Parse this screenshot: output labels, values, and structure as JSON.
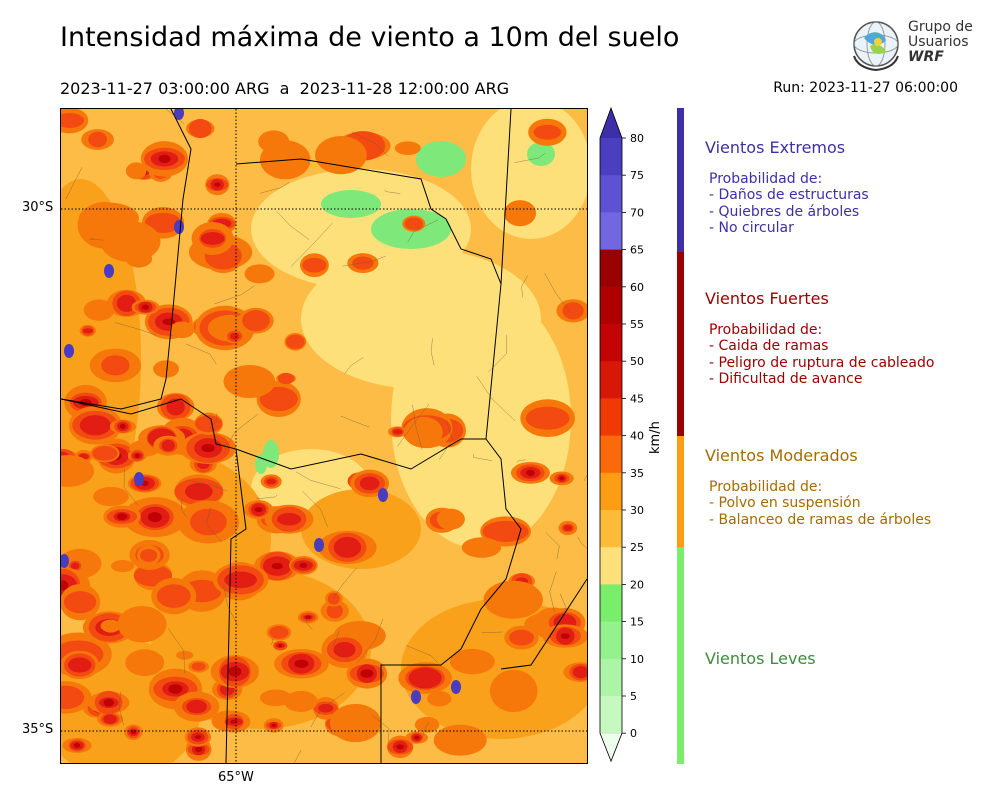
{
  "title": "Intensidad máxima de viento a 10m del suelo",
  "period": "2023-11-27 03:00:00 ARG  a  2023-11-28 12:00:00 ARG",
  "run": "Run: 2023-11-27 06:00:00",
  "logo": {
    "line1": "Grupo de",
    "line2": "Usuarios",
    "line3": "WRF"
  },
  "map": {
    "lat_labels": [
      "30°S",
      "35°S"
    ],
    "lon_labels": [
      "65°W"
    ],
    "palette": {
      "land_25_30": "#fde07a",
      "land_30_35": "#fcbc45",
      "land_35_40": "#f9a11a",
      "land_40_45": "#f7780a",
      "land_45_50": "#f24a10",
      "land_50_55": "#e21d14",
      "land_55_60": "#c10202",
      "extreme": "#4a3bbf",
      "low_20_25": "#7ee87a"
    }
  },
  "colorbar": {
    "unit": "km/h",
    "ticks": [
      "80",
      "75",
      "70",
      "65",
      "60",
      "55",
      "50",
      "45",
      "40",
      "35",
      "30",
      "25",
      "20",
      "15",
      "10",
      "5",
      "0"
    ],
    "colors": [
      "#3d2fa8",
      "#4b3fc0",
      "#5e52d2",
      "#7267e0",
      "#9b0000",
      "#ae0000",
      "#c20404",
      "#d81806",
      "#ef3a06",
      "#fb6a0a",
      "#fd9d14",
      "#fdbb38",
      "#fee07a",
      "#7aee6a",
      "#93f28c",
      "#adf5a6",
      "#c6f9c0",
      "#dcfbd7",
      "#eefeec"
    ]
  },
  "categories": [
    {
      "name": "Vientos Extremos",
      "color": "#3d2fa8",
      "desc": [
        " Probabilidad de:",
        " - Daños de estructuras",
        " - Quiebres de árboles",
        " - No circular"
      ]
    },
    {
      "name": "Vientos Fuertes",
      "color": "#990000",
      "desc": [
        " Probabilidad de:",
        " - Caida de ramas",
        " - Peligro de ruptura de cableado",
        " - Dificultad de avance"
      ]
    },
    {
      "name": "Vientos Moderados",
      "color": "#a56b00",
      "desc": [
        " Probabilidad de:",
        " - Polvo en suspensión",
        " - Balanceo de ramas de árboles"
      ]
    },
    {
      "name": "Vientos Leves",
      "color": "#3c8c3c",
      "desc": []
    }
  ]
}
